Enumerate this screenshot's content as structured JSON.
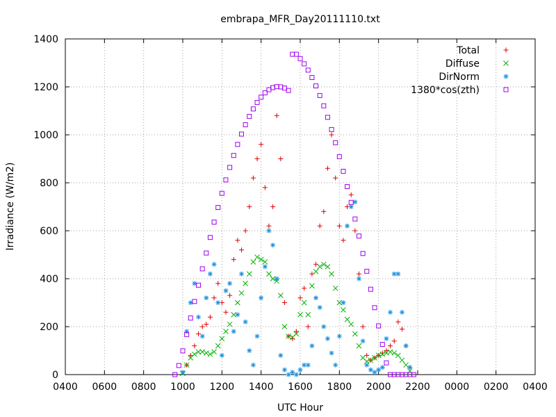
{
  "chart_data": {
    "type": "scatter",
    "title": "embrapa_MFR_Day20111110.txt",
    "xlabel": "UTC Hour",
    "ylabel": "Irradiance (W/m2)",
    "xlim": [
      4,
      28
    ],
    "ylim": [
      0,
      1400
    ],
    "x_ticks": [
      4,
      6,
      8,
      10,
      12,
      14,
      16,
      18,
      20,
      22,
      24,
      26,
      28
    ],
    "x_tick_labels": [
      "0400",
      "0600",
      "0800",
      "1000",
      "1200",
      "1400",
      "1600",
      "1800",
      "2000",
      "2200",
      "0000",
      "0200",
      "0400"
    ],
    "y_ticks": [
      0,
      200,
      400,
      600,
      800,
      1000,
      1200,
      1400
    ],
    "y_tick_labels": [
      "0",
      "200",
      "400",
      "600",
      "800",
      "1000",
      "1200",
      "1400"
    ],
    "grid": true,
    "legend_position": "top-right",
    "series": [
      {
        "name": "Total",
        "marker": "plus",
        "color": "#e00000",
        "x": [
          10.0,
          10.2,
          10.4,
          10.6,
          10.8,
          11.0,
          11.2,
          11.4,
          11.6,
          11.8,
          12.0,
          12.2,
          12.4,
          12.6,
          12.8,
          13.0,
          13.2,
          13.4,
          13.6,
          13.8,
          14.0,
          14.2,
          14.4,
          14.6,
          14.8,
          15.0,
          15.2,
          15.4,
          15.6,
          15.8,
          16.0,
          16.2,
          16.4,
          16.6,
          16.8,
          17.0,
          17.2,
          17.4,
          17.6,
          17.8,
          18.0,
          18.2,
          18.4,
          18.6,
          18.8,
          19.0,
          19.2,
          19.4,
          19.6,
          19.8,
          20.0,
          20.2,
          20.4,
          20.6,
          20.8,
          21.0,
          21.2,
          21.4,
          21.6
        ],
        "y": [
          10,
          40,
          80,
          120,
          170,
          200,
          210,
          240,
          320,
          380,
          300,
          260,
          330,
          480,
          560,
          520,
          600,
          700,
          820,
          900,
          960,
          780,
          620,
          700,
          1080,
          900,
          300,
          160,
          150,
          180,
          320,
          360,
          200,
          420,
          460,
          620,
          680,
          860,
          1000,
          820,
          620,
          560,
          700,
          750,
          600,
          420,
          200,
          80,
          60,
          70,
          80,
          90,
          100,
          120,
          140,
          220,
          190,
          120,
          30
        ]
      },
      {
        "name": "Diffuse",
        "marker": "cross",
        "color": "#00b000",
        "x": [
          10.0,
          10.2,
          10.4,
          10.6,
          10.8,
          11.0,
          11.2,
          11.4,
          11.6,
          11.8,
          12.0,
          12.2,
          12.4,
          12.6,
          12.8,
          13.0,
          13.2,
          13.4,
          13.6,
          13.8,
          14.0,
          14.2,
          14.4,
          14.6,
          14.8,
          15.0,
          15.2,
          15.4,
          15.6,
          15.8,
          16.0,
          16.2,
          16.4,
          16.6,
          16.8,
          17.0,
          17.2,
          17.4,
          17.6,
          17.8,
          18.0,
          18.2,
          18.4,
          18.6,
          18.8,
          19.0,
          19.2,
          19.4,
          19.6,
          19.8,
          20.0,
          20.2,
          20.4,
          20.6,
          20.8,
          21.0,
          21.2,
          21.4,
          21.6
        ],
        "y": [
          5,
          40,
          70,
          85,
          95,
          95,
          90,
          85,
          95,
          120,
          150,
          180,
          210,
          250,
          300,
          340,
          380,
          420,
          470,
          490,
          480,
          470,
          420,
          400,
          390,
          330,
          200,
          160,
          155,
          170,
          250,
          300,
          250,
          370,
          430,
          450,
          460,
          450,
          420,
          360,
          300,
          270,
          230,
          210,
          170,
          120,
          70,
          55,
          60,
          70,
          80,
          85,
          90,
          95,
          90,
          80,
          60,
          40,
          15
        ]
      },
      {
        "name": "DirNorm",
        "marker": "star",
        "color": "#1a8fe0",
        "x": [
          10.0,
          10.2,
          10.4,
          10.6,
          10.8,
          11.0,
          11.2,
          11.4,
          11.6,
          11.8,
          12.0,
          12.2,
          12.4,
          12.6,
          12.8,
          13.0,
          13.2,
          13.4,
          13.6,
          13.8,
          14.0,
          14.2,
          14.4,
          14.6,
          14.8,
          15.0,
          15.2,
          15.4,
          15.6,
          15.8,
          16.0,
          16.2,
          16.4,
          16.6,
          16.8,
          17.0,
          17.2,
          17.4,
          17.6,
          17.8,
          18.0,
          18.2,
          18.4,
          18.6,
          18.8,
          19.0,
          19.2,
          19.4,
          19.6,
          19.8,
          20.0,
          20.2,
          20.4,
          20.6,
          20.8,
          21.0,
          21.2,
          21.4,
          21.6
        ],
        "y": [
          10,
          180,
          300,
          380,
          240,
          160,
          320,
          420,
          460,
          300,
          80,
          350,
          380,
          180,
          250,
          420,
          220,
          100,
          40,
          160,
          320,
          450,
          600,
          540,
          400,
          80,
          20,
          0,
          10,
          0,
          20,
          40,
          40,
          120,
          320,
          280,
          200,
          150,
          90,
          40,
          160,
          300,
          620,
          700,
          720,
          400,
          140,
          40,
          20,
          10,
          20,
          30,
          150,
          260,
          420,
          420,
          260,
          120,
          30
        ]
      },
      {
        "name": "1380*cos(zth)",
        "marker": "square",
        "color": "#a000f0",
        "x": [
          9.6,
          9.8,
          10.0,
          10.2,
          10.4,
          10.6,
          10.8,
          11.0,
          11.2,
          11.4,
          11.6,
          11.8,
          12.0,
          12.2,
          12.4,
          12.6,
          12.8,
          13.0,
          13.2,
          13.4,
          13.6,
          13.8,
          14.0,
          14.2,
          14.4,
          14.6,
          14.8,
          15.0,
          15.2,
          15.4,
          15.6,
          15.8,
          16.0,
          16.2,
          16.4,
          16.6,
          16.8,
          17.0,
          17.2,
          17.4,
          17.6,
          17.8,
          18.0,
          18.2,
          18.4,
          18.6,
          18.8,
          19.0,
          19.2,
          19.4,
          19.6,
          19.8,
          20.0,
          20.2,
          20.4,
          20.6,
          20.8,
          21.0,
          21.2,
          21.4,
          21.6,
          21.8
        ],
        "y": [
          0,
          38,
          99,
          167,
          236,
          305,
          373,
          441,
          507,
          572,
          636,
          697,
          756,
          812,
          864,
          914,
          960,
          1003,
          1042,
          1077,
          1108,
          1135,
          1157,
          1175,
          1188,
          1197,
          1201,
          1200,
          1195,
          1185,
          1336,
          1336,
          1318,
          1296,
          1270,
          1239,
          1204,
          1164,
          1121,
          1073,
          1022,
          967,
          909,
          848,
          784,
          718,
          649,
          578,
          505,
          431,
          356,
          279,
          203,
          126,
          49,
          0,
          0,
          0,
          0,
          0,
          0,
          0
        ]
      }
    ]
  }
}
